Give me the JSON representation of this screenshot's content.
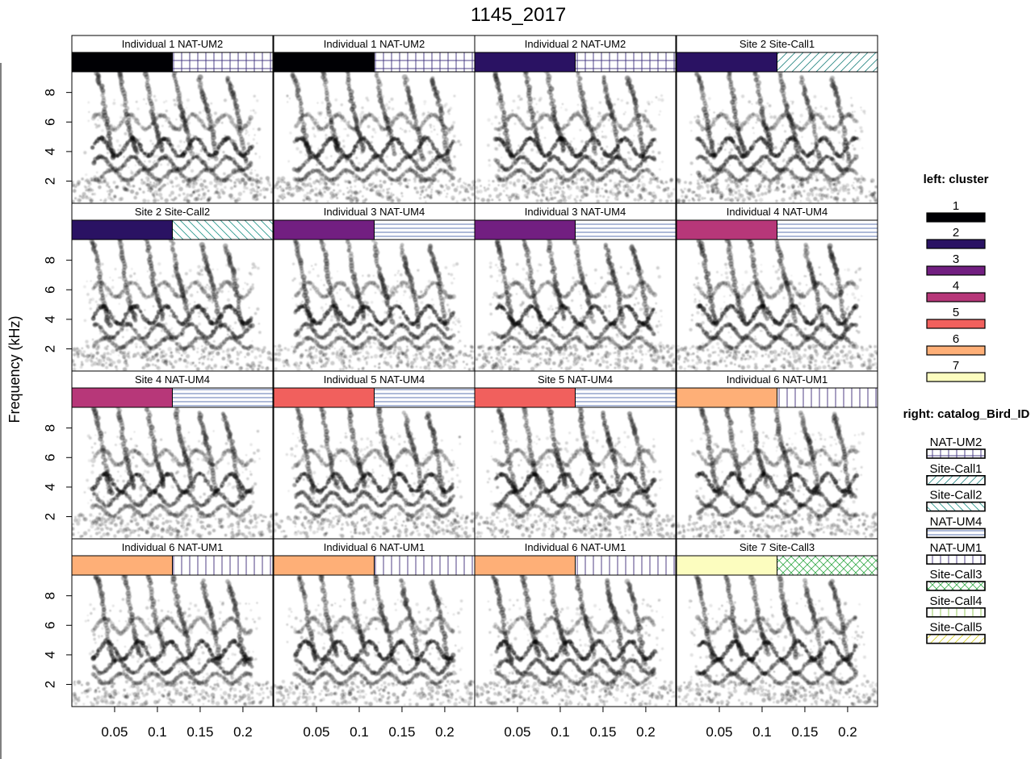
{
  "chart_data": {
    "type": "spectrogram-grid",
    "title": "1145_2017",
    "ylabel": "Frequency (kHz)",
    "xlabel": "",
    "x_ticks": [
      "0.05",
      "0.1",
      "0.15",
      "0.2"
    ],
    "x_tick_values": [
      0.05,
      0.1,
      0.15,
      0.2
    ],
    "xlim": [
      0,
      0.235
    ],
    "y_ticks": [
      "2",
      "4",
      "6",
      "8"
    ],
    "y_tick_values": [
      2,
      4,
      6,
      8
    ],
    "ylim": [
      0.5,
      9.4
    ],
    "panels": [
      {
        "label": "Individual 1 NAT-UM2",
        "cluster": 1,
        "bird_id": "NAT-UM2",
        "seed": 11
      },
      {
        "label": "Individual 1 NAT-UM2",
        "cluster": 1,
        "bird_id": "NAT-UM2",
        "seed": 12
      },
      {
        "label": "Individual 2 NAT-UM2",
        "cluster": 2,
        "bird_id": "NAT-UM2",
        "seed": 13
      },
      {
        "label": "Site 2 Site-Call1",
        "cluster": 2,
        "bird_id": "Site-Call1",
        "seed": 14
      },
      {
        "label": "Site 2 Site-Call2",
        "cluster": 2,
        "bird_id": "Site-Call2",
        "seed": 21
      },
      {
        "label": "Individual 3 NAT-UM4",
        "cluster": 3,
        "bird_id": "NAT-UM4",
        "seed": 22
      },
      {
        "label": "Individual 3 NAT-UM4",
        "cluster": 3,
        "bird_id": "NAT-UM4",
        "seed": 23
      },
      {
        "label": "Individual 4 NAT-UM4",
        "cluster": 4,
        "bird_id": "NAT-UM4",
        "seed": 24
      },
      {
        "label": "Site 4 NAT-UM4",
        "cluster": 4,
        "bird_id": "NAT-UM4",
        "seed": 31
      },
      {
        "label": "Individual 5 NAT-UM4",
        "cluster": 5,
        "bird_id": "NAT-UM4",
        "seed": 32
      },
      {
        "label": "Site 5 NAT-UM4",
        "cluster": 5,
        "bird_id": "NAT-UM4",
        "seed": 33
      },
      {
        "label": "Individual 6 NAT-UM1",
        "cluster": 6,
        "bird_id": "NAT-UM1",
        "seed": 34
      },
      {
        "label": "Individual 6 NAT-UM1",
        "cluster": 6,
        "bird_id": "NAT-UM1",
        "seed": 41
      },
      {
        "label": "Individual 6 NAT-UM1",
        "cluster": 6,
        "bird_id": "NAT-UM1",
        "seed": 42
      },
      {
        "label": "Individual 6 NAT-UM1",
        "cluster": 6,
        "bird_id": "NAT-UM1",
        "seed": 43
      },
      {
        "label": "Site 7 Site-Call3",
        "cluster": 7,
        "bird_id": "Site-Call3",
        "seed": 44
      }
    ],
    "legend_left": {
      "title": "left: cluster",
      "items": [
        {
          "label": "1",
          "color": "#000004"
        },
        {
          "label": "2",
          "color": "#2a1263"
        },
        {
          "label": "3",
          "color": "#721f81"
        },
        {
          "label": "4",
          "color": "#b73779"
        },
        {
          "label": "5",
          "color": "#f1605d"
        },
        {
          "label": "6",
          "color": "#feaf77"
        },
        {
          "label": "7",
          "color": "#fcfdbf"
        }
      ]
    },
    "legend_right": {
      "title": "right: catalog_Bird_ID",
      "items": [
        {
          "label": "NAT-UM2",
          "color": "#3b2d7a",
          "pattern": "grid"
        },
        {
          "label": "Site-Call1",
          "color": "#2c8a86",
          "pattern": "diag-up"
        },
        {
          "label": "Site-Call2",
          "color": "#2c9a8f",
          "pattern": "diag-down"
        },
        {
          "label": "NAT-UM4",
          "color": "#4a66a8",
          "pattern": "horizontal"
        },
        {
          "label": "NAT-UM1",
          "color": "#3e2a78",
          "pattern": "vertical"
        },
        {
          "label": "Site-Call3",
          "color": "#3fae52",
          "pattern": "cross"
        },
        {
          "label": "Site-Call4",
          "color": "#8bc34a",
          "pattern": "vertical"
        },
        {
          "label": "Site-Call5",
          "color": "#d9d12a",
          "pattern": "diag-up"
        }
      ]
    }
  }
}
